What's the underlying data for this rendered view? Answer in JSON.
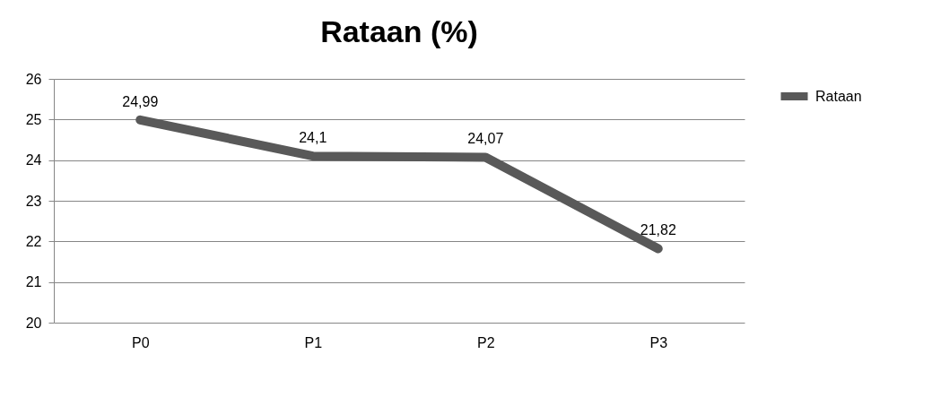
{
  "chart_data": {
    "type": "line",
    "title": "Rataan (%)",
    "categories": [
      "P0",
      "P1",
      "P2",
      "P3"
    ],
    "series": [
      {
        "name": "Rataan",
        "color": "#595959",
        "values": [
          24.99,
          24.1,
          24.07,
          21.82
        ],
        "value_labels": [
          "24,99",
          "24,1",
          "24,07",
          "21,82"
        ]
      }
    ],
    "ylim": [
      20,
      26
    ],
    "yticks": [
      20,
      21,
      22,
      23,
      24,
      25,
      26
    ],
    "grid": "y",
    "legend": "right",
    "marker": "none",
    "line_style": "solid"
  }
}
